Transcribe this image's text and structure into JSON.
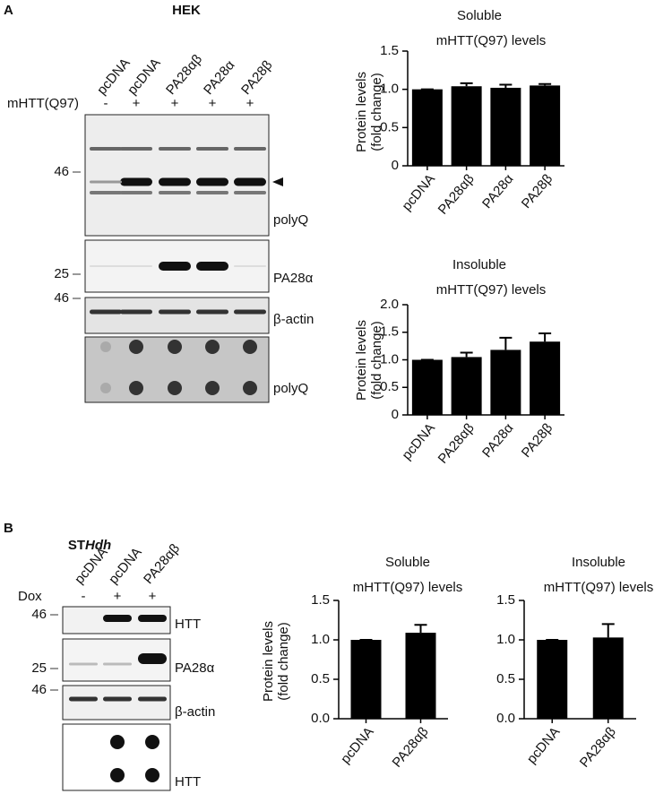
{
  "panel_a": {
    "letter": "A",
    "title": "HEK",
    "lanes": [
      "pcDNA",
      "pcDNA",
      "PA28αβ",
      "PA28α",
      "PA28β"
    ],
    "condition": {
      "label": "mHTT(Q97)",
      "values": [
        "-",
        "+",
        "+",
        "+",
        "+"
      ]
    },
    "blots": [
      {
        "marker": "46",
        "label": "polyQ"
      },
      {
        "marker": "25",
        "label": "PA28α"
      },
      {
        "marker": "46",
        "label": "β-actin"
      },
      {
        "label": "polyQ"
      }
    ]
  },
  "panel_b": {
    "letter": "B",
    "title": {
      "plain": "ST",
      "italic": "Hdh"
    },
    "lanes": [
      "pcDNA",
      "pcDNA",
      "PA28αβ"
    ],
    "condition": {
      "label": "Dox",
      "values": [
        "-",
        "+",
        "+"
      ]
    },
    "blots": [
      {
        "marker": "46",
        "label": "HTT"
      },
      {
        "marker": "25",
        "label": "PA28α"
      },
      {
        "marker": "46",
        "label": "β-actin"
      },
      {
        "label": "HTT"
      }
    ]
  },
  "chart_data": [
    {
      "type": "bar",
      "title": "Soluble",
      "subtitle": "mHTT(Q97) levels",
      "y_label": [
        "Protein levels",
        "(fold change)"
      ],
      "categories": [
        "pcDNA",
        "PA28αβ",
        "PA28α",
        "PA28β"
      ],
      "values": [
        1.0,
        1.04,
        1.02,
        1.05
      ],
      "errors": [
        0,
        0.04,
        0.04,
        0.02
      ],
      "color": "#000000",
      "ylim": [
        0,
        1.5
      ],
      "yticks": [
        0,
        0.5,
        {
          "value": 1.0,
          "label": "1.0"
        },
        1.5
      ]
    },
    {
      "type": "bar",
      "title": "Insoluble",
      "subtitle": "mHTT(Q97) levels",
      "y_label": [
        "Protein levels",
        "(fold change)"
      ],
      "categories": [
        "pcDNA",
        "PA28αβ",
        "PA28α",
        "PA28β"
      ],
      "values": [
        1.0,
        1.05,
        1.18,
        1.33
      ],
      "errors": [
        0,
        0.08,
        0.22,
        0.15
      ],
      "color": "#000000",
      "ylim": [
        0,
        2
      ],
      "yticks": [
        0,
        0.5,
        {
          "value": 1.0,
          "label": "1.0"
        },
        1.5,
        {
          "value": 2.0,
          "label": "2.0"
        }
      ]
    },
    {
      "type": "bar",
      "title": "Soluble",
      "subtitle": "mHTT(Q97) levels",
      "y_label": [
        "Protein levels",
        "(fold change)"
      ],
      "categories": [
        "pcDNA",
        "PA28αβ"
      ],
      "values": [
        1.0,
        1.09
      ],
      "errors": [
        0,
        0.1
      ],
      "color": "#000000",
      "ylim": [
        0,
        1.5
      ],
      "yticks": [
        {
          "value": 0,
          "label": "0.0"
        },
        0.5,
        {
          "value": 1.0,
          "label": "1.0"
        },
        1.5
      ]
    },
    {
      "type": "bar",
      "title": "Insoluble",
      "subtitle": "mHTT(Q97) levels",
      "categories": [
        "pcDNA",
        "PA28αβ"
      ],
      "values": [
        1.0,
        1.03
      ],
      "errors": [
        0,
        0.17
      ],
      "color": "#000000",
      "ylim": [
        0,
        1.5
      ],
      "yticks": [
        {
          "value": 0,
          "label": "0.0"
        },
        0.5,
        {
          "value": 1.0,
          "label": "1.0"
        },
        1.5
      ]
    }
  ]
}
